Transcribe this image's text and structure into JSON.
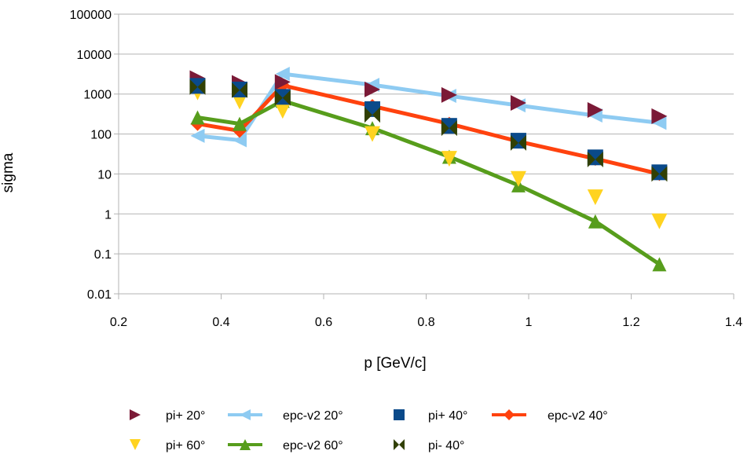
{
  "chart_data": {
    "type": "line",
    "title": "",
    "xlabel": "p [GeV/c]",
    "ylabel": "sigma",
    "xlim": [
      0.2,
      1.4
    ],
    "ylim": [
      0.01,
      100000
    ],
    "yscale": "log",
    "grid": "horizontal",
    "legend_position": "bottom",
    "x_ticks": [
      "0.2",
      "0.4",
      "0.6",
      "0.8",
      "1",
      "1.2",
      "1.4"
    ],
    "x_tick_values": [
      0.2,
      0.4,
      0.6,
      0.8,
      1.0,
      1.2,
      1.4
    ],
    "y_ticks": [
      "0.01",
      "0.1",
      "1",
      "10",
      "100",
      "1000",
      "10000",
      "100000"
    ],
    "y_tick_values": [
      0.01,
      0.1,
      1,
      10,
      100,
      1000,
      10000,
      100000
    ],
    "series": [
      {
        "name": "pi+ 20°",
        "style": "markers",
        "marker": "triangle-right",
        "color": "#7b1a37",
        "x": [
          0.354,
          0.436,
          0.52,
          0.695,
          0.845,
          0.98,
          1.13,
          1.255
        ],
        "y": [
          2500,
          1900,
          2000,
          1300,
          950,
          600,
          400,
          280
        ]
      },
      {
        "name": "epc-v2 20°",
        "style": "line",
        "marker": "triangle-left",
        "color": "#8ecbf2",
        "x": [
          0.354,
          0.436,
          0.52,
          0.695,
          0.845,
          0.98,
          1.13,
          1.255
        ],
        "y": [
          90,
          70,
          3200,
          1700,
          900,
          520,
          290,
          190
        ]
      },
      {
        "name": "pi+ 40°",
        "style": "markers",
        "marker": "square",
        "color": "#0a4a8a",
        "x": [
          0.354,
          0.436,
          0.52,
          0.695,
          0.845,
          0.98,
          1.13,
          1.255
        ],
        "y": [
          1600,
          1300,
          850,
          420,
          160,
          68,
          26,
          11
        ]
      },
      {
        "name": "epc-v2 40°",
        "style": "line",
        "marker": "diamond",
        "color": "#ff420e",
        "x": [
          0.354,
          0.436,
          0.52,
          0.695,
          0.845,
          0.98,
          1.13,
          1.255
        ],
        "y": [
          180,
          120,
          1650,
          500,
          180,
          65,
          24,
          10
        ]
      },
      {
        "name": "pi+ 60°",
        "style": "markers",
        "marker": "triangle-down",
        "color": "#ffd320",
        "x": [
          0.354,
          0.436,
          0.52,
          0.695,
          0.845,
          0.98,
          1.13,
          1.255
        ],
        "y": [
          1100,
          650,
          380,
          100,
          24,
          7.5,
          2.6,
          0.65
        ]
      },
      {
        "name": "epc-v2 60°",
        "style": "line",
        "marker": "triangle-up",
        "color": "#579d1c",
        "x": [
          0.354,
          0.436,
          0.52,
          0.695,
          0.845,
          0.98,
          1.13,
          1.255
        ],
        "y": [
          260,
          180,
          680,
          140,
          27,
          5.2,
          0.65,
          0.055
        ]
      },
      {
        "name": "pi- 40°",
        "style": "markers",
        "marker": "bowtie",
        "color": "#314004",
        "x": [
          0.354,
          0.436,
          0.52,
          0.695,
          0.845,
          0.98,
          1.13,
          1.255
        ],
        "y": [
          1500,
          1250,
          800,
          300,
          140,
          60,
          23,
          10
        ]
      }
    ]
  }
}
